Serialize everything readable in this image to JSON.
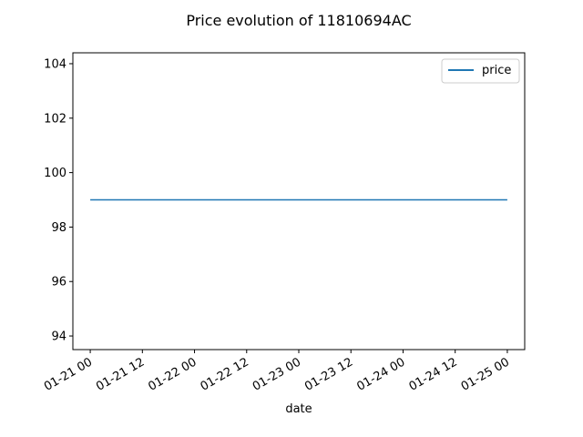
{
  "chart_data": {
    "type": "line",
    "title": "Price evolution of 11810694AC",
    "xlabel": "date",
    "ylabel": "",
    "x_ticks": [
      "01-21 00",
      "01-21 12",
      "01-22 00",
      "01-22 12",
      "01-23 00",
      "01-23 12",
      "01-24 00",
      "01-24 12",
      "01-25 00"
    ],
    "y_ticks": [
      94,
      96,
      98,
      100,
      102,
      104
    ],
    "ylim": [
      93.5,
      104.4
    ],
    "xlim": [
      "01-20 20",
      "01-25 04"
    ],
    "series": [
      {
        "name": "price",
        "color": "#1f77b4",
        "x": [
          "01-21 00",
          "01-25 00"
        ],
        "y": [
          99,
          99
        ]
      }
    ],
    "legend": "top-right",
    "grid": false
  }
}
